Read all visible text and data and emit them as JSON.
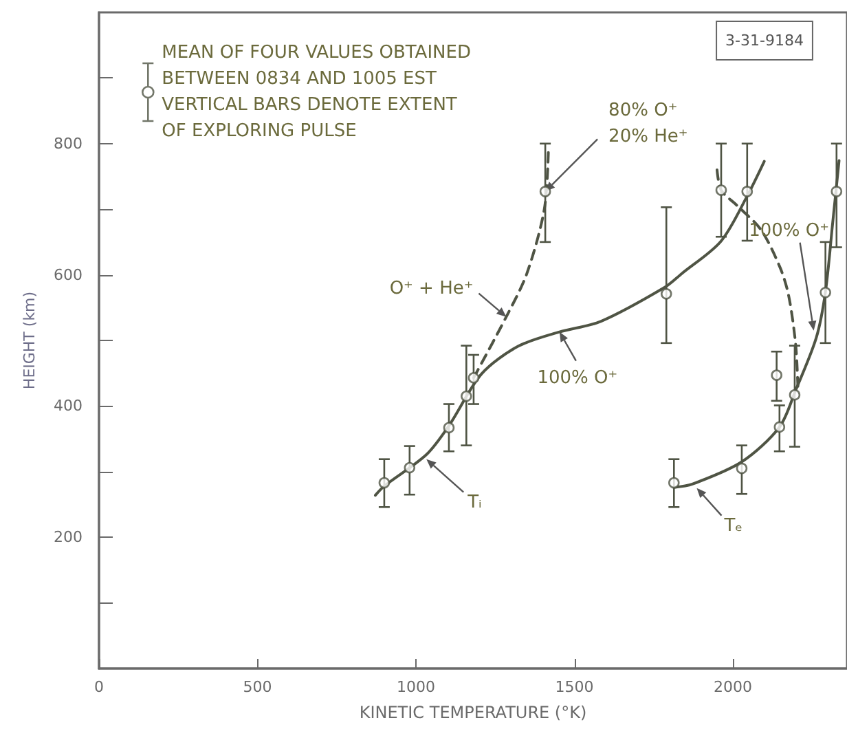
{
  "chart_data": {
    "type": "scatter",
    "xlabel": "KINETIC TEMPERATURE (°K)",
    "ylabel": "HEIGHT (km)",
    "xlim": [
      0,
      2360
    ],
    "ylim": [
      0,
      1000
    ],
    "xticks": [
      0,
      500,
      1000,
      1500,
      2000
    ],
    "yticks": [
      {
        "value": 100,
        "label": null
      },
      200,
      {
        "value": 300,
        "label": null
      },
      400,
      {
        "value": 500,
        "label": null
      },
      600,
      {
        "value": 700,
        "label": null
      },
      800,
      {
        "value": 900,
        "label": null
      }
    ],
    "grid": false,
    "marker": "circle",
    "legend": "top left",
    "annotations": [
      "3-31-9184",
      {
        "text": "80% O⁺\n20% He⁺",
        "x": 1408,
        "y": 727
      },
      {
        "text": "O⁺ + He⁺",
        "x": 1285,
        "y": 536
      },
      {
        "text": "100% O⁺",
        "x": 1453,
        "y": 513
      },
      {
        "text": "100% O⁺",
        "x": 2255,
        "y": 515
      },
      {
        "text": "Tᵢ",
        "x": 1033,
        "y": 319
      },
      {
        "text": "Tₑ",
        "x": 1886,
        "y": 275
      }
    ],
    "series": [
      {
        "name": "MEAN OF FOUR VALUES OBTAINED\nBETWEEN 0834 AND 1005 EST\nVERTICAL BARS DENOTE EXTENT\nOF EXPLORING PULSE",
        "color": "#4f5444",
        "x": [
          900,
          980,
          1104,
          1159,
          1182,
          1790,
          1408,
          1963,
          2045
        ],
        "values": [
          283,
          306,
          367,
          415,
          443,
          571,
          727,
          729,
          727
        ],
        "errors": [
          [
            246,
            319
          ],
          [
            265,
            339
          ],
          [
            331,
            403
          ],
          [
            340,
            492
          ],
          [
            403,
            478
          ],
          [
            496,
            703
          ],
          [
            650,
            800
          ],
          [
            658,
            800
          ],
          [
            652,
            800
          ]
        ]
      },
      {
        "color": "#4f5444",
        "x": [
          1814,
          2028,
          2147,
          2195,
          2138,
          2292,
          2327
        ],
        "values": [
          283,
          305,
          368,
          417,
          447,
          573,
          727
        ],
        "errors": [
          [
            246,
            319
          ],
          [
            266,
            340
          ],
          [
            331,
            401
          ],
          [
            338,
            492
          ],
          [
            408,
            483
          ],
          [
            496,
            650
          ],
          [
            642,
            800
          ]
        ]
      },
      {
        "type": "line",
        "color": "#4f5444",
        "marker": "none",
        "line_style": "solid",
        "x": [
          872,
          900,
          1033,
          1104,
          1207,
          1322,
          1453,
          1583,
          1785,
          1839,
          1962,
          2045,
          2099
        ],
        "values": [
          264,
          278,
          326,
          370,
          449,
          491,
          513,
          529,
          581,
          602,
          651,
          720,
          773
        ]
      },
      {
        "type": "line",
        "color": "#4f5444",
        "marker": "none",
        "line_style": "dashed",
        "x": [
          1182,
          1285,
          1350,
          1405,
          1418
        ],
        "values": [
          443,
          536,
          602,
          700,
          790
        ]
      },
      {
        "type": "line",
        "color": "#4f5444",
        "marker": "none",
        "line_style": "dashed",
        "x": [
          1950,
          1963,
          2010,
          2088,
          2149,
          2176,
          2198,
          2205
        ],
        "values": [
          760,
          729,
          707,
          669,
          611,
          568,
          494,
          430
        ]
      },
      {
        "type": "line",
        "color": "#4f5444",
        "marker": "none",
        "line_style": "solid",
        "x": [
          1814,
          1872,
          2028,
          2147,
          2198,
          2263,
          2292,
          2315,
          2335
        ],
        "values": [
          276,
          281,
          315,
          368,
          424,
          504,
          574,
          680,
          774
        ]
      }
    ]
  }
}
